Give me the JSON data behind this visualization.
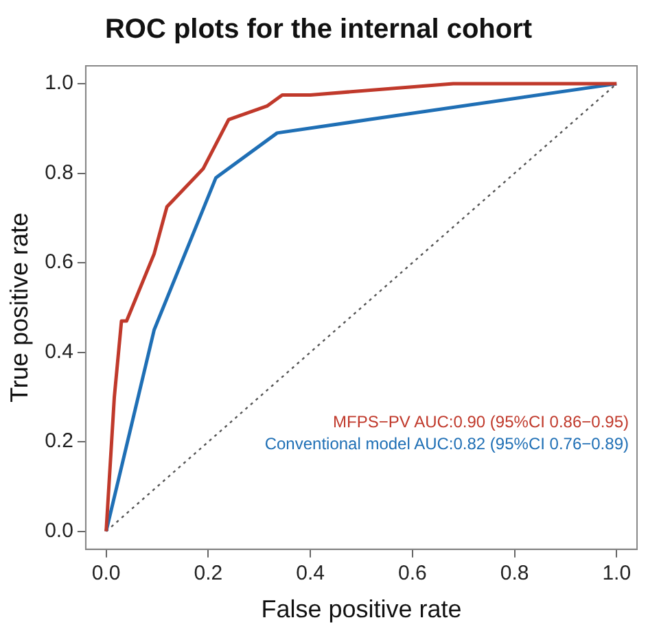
{
  "chart_data": {
    "type": "line",
    "title": "ROC plots for the internal cohort",
    "xlabel": "False positive rate",
    "ylabel": "True positive rate",
    "xlim": [
      -0.04,
      1.04
    ],
    "ylim": [
      -0.04,
      1.04
    ],
    "xticks": [
      {
        "value": 0,
        "label": "0.0"
      },
      0.2,
      0.4,
      0.6,
      0.8,
      {
        "value": 1,
        "label": "1.0"
      }
    ],
    "yticks": [
      {
        "value": 0,
        "label": "0.0"
      },
      0.2,
      0.4,
      0.6,
      0.8,
      {
        "value": 1,
        "label": "1.0"
      }
    ],
    "grid": false,
    "legend": "bottom right",
    "marker": "none",
    "series": [
      {
        "name": "MFPS−PV AUC:0.90 (95%CI 0.86−0.95)",
        "color": "#c0392b",
        "x": [
          0,
          0.016,
          0.03,
          0.04,
          0.094,
          0.113,
          0.119,
          0.19,
          0.24,
          0.315,
          0.345,
          0.4,
          0.68,
          1
        ],
        "values": [
          0,
          0.3,
          0.47,
          0.47,
          0.62,
          0.7,
          0.725,
          0.81,
          0.92,
          0.95,
          0.975,
          0.975,
          1,
          1
        ]
      },
      {
        "name": "Conventional model AUC:0.82 (95%CI 0.76−0.89)",
        "color": "#1f6fb5",
        "x": [
          0,
          0.094,
          0.215,
          0.335,
          0.515,
          1
        ],
        "values": [
          0,
          0.45,
          0.79,
          0.89,
          0.92,
          1
        ]
      },
      {
        "color": "#555555",
        "line_style": "dotted",
        "x": [
          0,
          1
        ],
        "values": [
          0,
          1
        ]
      }
    ]
  }
}
